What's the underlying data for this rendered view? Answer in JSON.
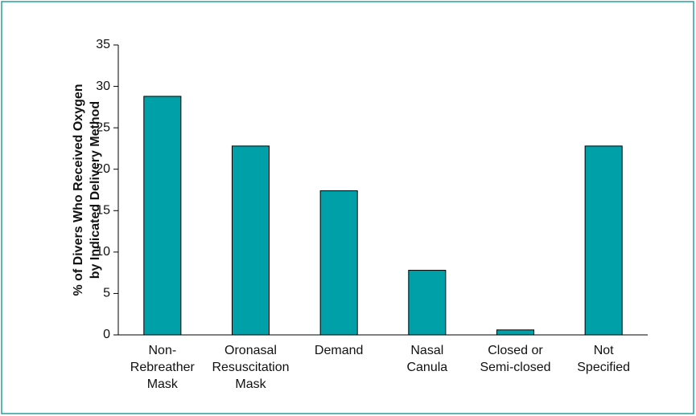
{
  "chart_data": {
    "type": "bar",
    "ylabel": [
      "% of Divers Who Received Oxygen",
      "by Indicated Delivery Method"
    ],
    "categories": [
      [
        "Non-",
        "Rebreather",
        "Mask"
      ],
      [
        "Oronasal",
        "Resuscitation",
        "Mask"
      ],
      [
        "Demand"
      ],
      [
        "Nasal",
        "Canula"
      ],
      [
        "Closed or",
        "Semi-closed"
      ],
      [
        "Not",
        "Specified"
      ]
    ],
    "values": [
      28.8,
      22.8,
      17.4,
      7.8,
      0.6,
      22.8
    ],
    "color": "#00a0a8",
    "ylim": [
      0,
      35
    ],
    "yticks": [
      0,
      5,
      10,
      15,
      20,
      25,
      30,
      35
    ]
  }
}
